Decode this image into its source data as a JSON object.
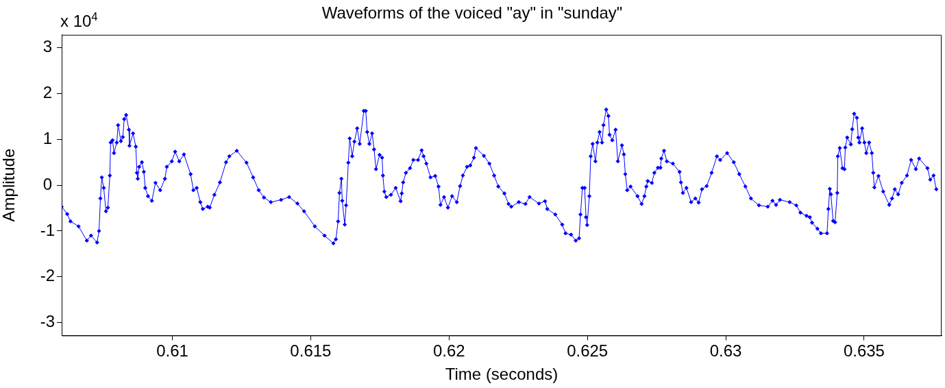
{
  "chart_data": {
    "type": "line",
    "title": "Waveforms of the voiced \"ay\" in \"sunday\"",
    "xlabel": "Time (seconds)",
    "ylabel": "Amplitude",
    "annotations": [
      "x 10$^{4}$"
    ],
    "xlim": [
      0.606,
      0.6378
    ],
    "xticks": [
      0.61,
      0.615,
      0.62,
      0.625,
      0.63,
      0.635
    ],
    "ylim": [
      -3.28,
      3.28
    ],
    "yticks": [
      -3,
      -2,
      -1,
      0,
      1,
      2,
      3
    ],
    "grid": false,
    "legend": false,
    "marker": "diamond",
    "line_style": "solid",
    "series": [
      {
        "color": "#0000ff",
        "x": [
          0.606,
          0.6062,
          0.60632,
          0.60661,
          0.60691,
          0.60706,
          0.60728,
          0.60735,
          0.6074,
          0.60745,
          0.60752,
          0.6076,
          0.60767,
          0.60774,
          0.60777,
          0.60784,
          0.60789,
          0.60799,
          0.60804,
          0.60814,
          0.60821,
          0.60826,
          0.60833,
          0.60843,
          0.60845,
          0.60858,
          0.60868,
          0.60872,
          0.60875,
          0.6088,
          0.6089,
          0.60897,
          0.60902,
          0.60912,
          0.60926,
          0.60939,
          0.60956,
          0.60973,
          0.6098,
          0.60998,
          0.6101,
          0.61025,
          0.61042,
          0.61066,
          0.61076,
          0.61088,
          0.61101,
          0.6111,
          0.61128,
          0.61135,
          0.61152,
          0.61172,
          0.61194,
          0.61206,
          0.61233,
          0.61268,
          0.61292,
          0.61312,
          0.61331,
          0.61356,
          0.61393,
          0.61422,
          0.61452,
          0.61476,
          0.61515,
          0.6155,
          0.61582,
          0.61591,
          0.61599,
          0.61604,
          0.61611,
          0.61614,
          0.61623,
          0.61628,
          0.61636,
          0.61641,
          0.6165,
          0.61658,
          0.61668,
          0.61677,
          0.61692,
          0.61699,
          0.61704,
          0.61712,
          0.61722,
          0.61729,
          0.61736,
          0.61749,
          0.61758,
          0.61761,
          0.61766,
          0.61773,
          0.6179,
          0.61807,
          0.61825,
          0.61829,
          0.61834,
          0.61844,
          0.61859,
          0.61871,
          0.61888,
          0.61901,
          0.61908,
          0.61918,
          0.61933,
          0.6195,
          0.61962,
          0.61969,
          0.61982,
          0.61996,
          0.62011,
          0.62028,
          0.6204,
          0.6205,
          0.62065,
          0.62077,
          0.6209,
          0.62097,
          0.62126,
          0.62146,
          0.62163,
          0.62178,
          0.622,
          0.62215,
          0.62225,
          0.62252,
          0.62276,
          0.62291,
          0.62325,
          0.62347,
          0.62355,
          0.62384,
          0.62409,
          0.62421,
          0.62441,
          0.62458,
          0.6247,
          0.62475,
          0.62482,
          0.6249,
          0.62495,
          0.62499,
          0.62507,
          0.62512,
          0.62519,
          0.62529,
          0.62536,
          0.62544,
          0.62553,
          0.62558,
          0.62568,
          0.62576,
          0.6258,
          0.6259,
          0.62602,
          0.6261,
          0.62625,
          0.62632,
          0.62637,
          0.62644,
          0.62656,
          0.62681,
          0.62696,
          0.62706,
          0.62713,
          0.62718,
          0.62733,
          0.62742,
          0.62755,
          0.62764,
          0.62767,
          0.62777,
          0.62787,
          0.62809,
          0.62833,
          0.62838,
          0.62845,
          0.62858,
          0.62875,
          0.6289,
          0.62902,
          0.62914,
          0.62931,
          0.62949,
          0.62968,
          0.6298,
          0.63005,
          0.63029,
          0.63049,
          0.63071,
          0.63091,
          0.6312,
          0.63152,
          0.63169,
          0.63182,
          0.63196,
          0.63231,
          0.63255,
          0.6327,
          0.63292,
          0.63304,
          0.63312,
          0.63331,
          0.63344,
          0.63366,
          0.63371,
          0.63376,
          0.6338,
          0.63388,
          0.63395,
          0.63403,
          0.63405,
          0.63412,
          0.63422,
          0.63429,
          0.63432,
          0.63439,
          0.63452,
          0.63457,
          0.63464,
          0.63474,
          0.63479,
          0.63483,
          0.63493,
          0.63501,
          0.63508,
          0.63518,
          0.63528,
          0.63533,
          0.63537,
          0.63552,
          0.63569,
          0.63591,
          0.63601,
          0.63611,
          0.63623,
          0.63636,
          0.63655,
          0.6367,
          0.63687,
          0.63699,
          0.63729,
          0.63739,
          0.63751,
          0.63761
        ],
        "values": [
          -0.47,
          -0.63,
          -0.79,
          -0.9,
          -1.21,
          -1.1,
          -1.25,
          -1.0,
          -0.29,
          0.17,
          -0.06,
          -0.57,
          -0.49,
          0.21,
          0.93,
          0.98,
          0.7,
          0.93,
          1.31,
          0.96,
          1.05,
          1.44,
          1.53,
          1.21,
          0.86,
          1.13,
          0.84,
          0.27,
          0.14,
          0.4,
          0.5,
          0.29,
          -0.06,
          -0.24,
          -0.34,
          0.05,
          -0.11,
          0.14,
          0.4,
          0.52,
          0.73,
          0.52,
          0.67,
          0.24,
          -0.11,
          -0.06,
          -0.37,
          -0.52,
          -0.47,
          -0.49,
          -0.21,
          0.06,
          0.5,
          0.63,
          0.75,
          0.49,
          0.17,
          -0.11,
          -0.27,
          -0.37,
          -0.32,
          -0.26,
          -0.4,
          -0.57,
          -0.9,
          -1.1,
          -1.27,
          -1.18,
          -0.79,
          -0.17,
          0.14,
          -0.34,
          -0.86,
          -0.44,
          0.49,
          1.02,
          0.63,
          0.95,
          1.24,
          0.9,
          1.62,
          1.62,
          1.16,
          0.9,
          1.13,
          0.78,
          0.35,
          0.66,
          0.6,
          0.21,
          -0.14,
          -0.26,
          -0.21,
          -0.06,
          -0.35,
          -0.18,
          0.06,
          0.27,
          0.37,
          0.55,
          0.55,
          0.76,
          0.63,
          0.47,
          0.17,
          0.2,
          -0.03,
          -0.43,
          -0.26,
          -0.49,
          -0.24,
          -0.37,
          -0.02,
          0.21,
          0.4,
          0.43,
          0.6,
          0.81,
          0.64,
          0.47,
          0.21,
          -0.03,
          -0.18,
          -0.41,
          -0.47,
          -0.37,
          -0.41,
          -0.26,
          -0.4,
          -0.35,
          -0.52,
          -0.64,
          -0.86,
          -1.05,
          -1.08,
          -1.21,
          -1.16,
          -0.64,
          -0.06,
          -0.06,
          -0.7,
          -0.87,
          -0.24,
          0.63,
          0.9,
          0.52,
          0.93,
          1.16,
          0.93,
          1.31,
          1.65,
          1.51,
          1.1,
          0.98,
          1.21,
          0.52,
          0.87,
          0.67,
          0.24,
          -0.11,
          -0.03,
          -0.24,
          -0.41,
          -0.24,
          -0.03,
          0.09,
          0.05,
          0.27,
          0.38,
          0.38,
          0.58,
          0.75,
          0.52,
          0.47,
          0.29,
          0.06,
          -0.17,
          -0.06,
          -0.37,
          -0.29,
          -0.38,
          -0.09,
          -0.02,
          0.27,
          0.63,
          0.55,
          0.7,
          0.5,
          0.24,
          -0.03,
          -0.29,
          -0.44,
          -0.47,
          -0.34,
          -0.43,
          -0.32,
          -0.37,
          -0.44,
          -0.6,
          -0.67,
          -0.7,
          -0.82,
          -0.95,
          -1.05,
          -1.05,
          -0.52,
          -0.08,
          -0.2,
          -0.78,
          -0.81,
          -0.17,
          0.63,
          0.81,
          0.37,
          0.35,
          0.82,
          1.04,
          0.89,
          1.22,
          1.56,
          1.47,
          1.04,
          0.93,
          1.24,
          0.93,
          0.7,
          0.93,
          0.7,
          0.27,
          -0.05,
          0.2,
          -0.14,
          -0.43,
          -0.29,
          -0.09,
          -0.2,
          0.05,
          0.21,
          0.55,
          0.35,
          0.58,
          0.37,
          0.12,
          0.21,
          -0.09
        ]
      }
    ]
  }
}
